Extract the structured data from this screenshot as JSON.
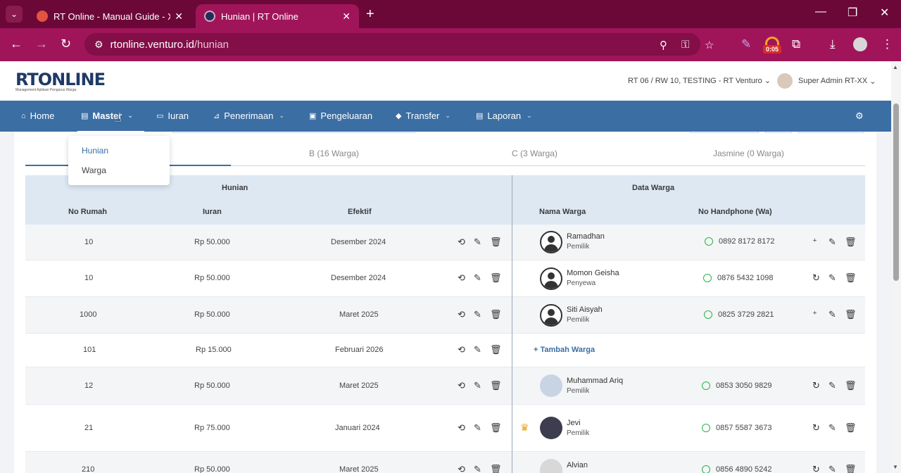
{
  "browser": {
    "tabs": [
      {
        "title": "RT Online - Manual Guide - Xm",
        "active": false
      },
      {
        "title": "Hunian | RT Online",
        "active": true
      }
    ],
    "url_host": "rtonline.venturo.id",
    "url_path": "/hunian",
    "timer_badge": "0:05"
  },
  "header": {
    "logo": "RTONLINE",
    "logo_sub": "Management Aplikasi Pengurus Warga",
    "location": "RT 06 / RW 10, TESTING - RT Venturo",
    "user": "Super Admin RT-XX"
  },
  "nav": {
    "items": [
      {
        "label": "Home",
        "icon": "home-icon"
      },
      {
        "label": "Master",
        "icon": "file-icon"
      },
      {
        "label": "Iuran",
        "icon": "card-icon"
      },
      {
        "label": "Penerimaan",
        "icon": "chart-icon"
      },
      {
        "label": "Pengeluaran",
        "icon": "image-icon"
      },
      {
        "label": "Transfer",
        "icon": "tag-icon"
      },
      {
        "label": "Laporan",
        "icon": "file-icon"
      }
    ]
  },
  "dropdown": {
    "items": [
      "Hunian",
      "Warga"
    ]
  },
  "block_tabs": [
    "B (16 Warga)",
    "C (3 Warga)",
    "Jasmine (0 Warga)"
  ],
  "table": {
    "group_hunian": "Hunian",
    "group_warga": "Data Warga",
    "col_no_rumah": "No Rumah",
    "col_iuran": "Iuran",
    "col_efektif": "Efektif",
    "col_nama": "Nama Warga",
    "col_hp": "No Handphone (Wa)",
    "add_label": "Tambah Warga",
    "rows": [
      {
        "no": "10",
        "iuran": "Rp 50.000",
        "efektif": "Desember 2024",
        "nama": "Ramadhan",
        "status": "Pemilik",
        "hp": "0892 8172 8172"
      },
      {
        "no": "10",
        "iuran": "Rp 50.000",
        "efektif": "Desember 2024",
        "nama": "Momon Geisha",
        "status": "Penyewa",
        "hp": "0876 5432 1098"
      },
      {
        "no": "1000",
        "iuran": "Rp 50.000",
        "efektif": "Maret 2025",
        "nama": "Siti Aisyah",
        "status": "Pemilik",
        "hp": "0825 3729 2821"
      },
      {
        "no": "101",
        "iuran": "Rp 15.000",
        "efektif": "Februari 2026",
        "nama": "",
        "status": "",
        "hp": ""
      },
      {
        "no": "12",
        "iuran": "Rp 50.000",
        "efektif": "Maret 2025",
        "nama": "Muhammad Ariq",
        "status": "Pemilik",
        "hp": "0853 3050 9829"
      },
      {
        "no": "21",
        "iuran": "Rp 75.000",
        "efektif": "Januari 2024",
        "nama": "Jevi",
        "status": "Pemilik",
        "hp": "0857 5587 3673"
      },
      {
        "no": "210",
        "iuran": "Rp 50.000",
        "efektif": "Maret 2025",
        "nama": "Alvian",
        "status": "",
        "hp": "0856 4890 5242"
      }
    ]
  }
}
